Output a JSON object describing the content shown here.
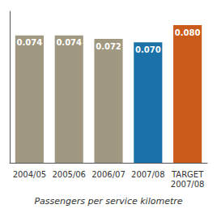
{
  "chart_data": {
    "type": "bar",
    "title": "Passengers per service kilometre",
    "categories": [
      "2004/05",
      "2005/06",
      "2006/07",
      "2007/08",
      "TARGET\n2007/08"
    ],
    "values": [
      0.074,
      0.074,
      0.072,
      0.07,
      0.08
    ],
    "value_labels": [
      "0.074",
      "0.074",
      "0.072",
      "0.070",
      "0.080"
    ],
    "colors": [
      "#a09880",
      "#a09880",
      "#a09880",
      "#1a72a8",
      "#c95c1a"
    ],
    "ylim": [
      0,
      0.088
    ],
    "grid": false,
    "data_labels": true,
    "tick_labels": "x"
  }
}
